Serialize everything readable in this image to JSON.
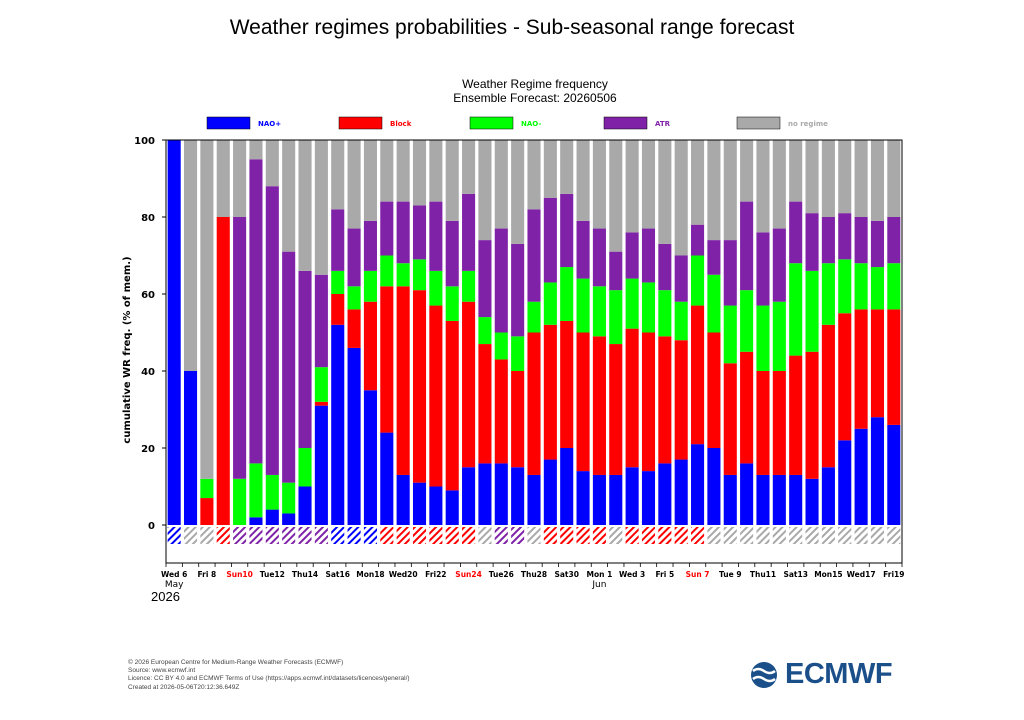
{
  "page": {
    "title": "Weather regimes probabilities - Sub-seasonal range forecast",
    "footer_lines": [
      "© 2026 European Centre for Medium-Range Weather Forecasts (ECMWF)",
      "Source: www.ecmwf.int",
      "Licence: CC BY 4.0 and ECMWF Terms of Use (https://apps.ecmwf.int/datasets/licences/general/)",
      "Created at 2026-05-06T20:12:36.649Z"
    ],
    "logo_text": "ECMWF"
  },
  "chart_data": {
    "type": "bar",
    "stacked": true,
    "title": "Weather Regime frequency",
    "subtitle": "Ensemble Forecast: 20260506",
    "ylabel": "cumulative WR freq. (% of mem.)",
    "ylim": [
      0,
      100
    ],
    "yticks": [
      0,
      20,
      40,
      60,
      80,
      100
    ],
    "grid": false,
    "legend_position": "top",
    "series": [
      {
        "name": "NAO+",
        "color": "#0000ff",
        "values": [
          100,
          40,
          0,
          0,
          0,
          2,
          4,
          3,
          10,
          31,
          52,
          46,
          35,
          24,
          13,
          11,
          10,
          9,
          15,
          16,
          16,
          15,
          13,
          17,
          20,
          14,
          13,
          13,
          15,
          14,
          16,
          17,
          21,
          20,
          13,
          16,
          13,
          13,
          13,
          12,
          15,
          22,
          25,
          28,
          26
        ]
      },
      {
        "name": "Block",
        "color": "#ff0000",
        "values": [
          0,
          0,
          7,
          80,
          0,
          0,
          0,
          0,
          0,
          1,
          8,
          10,
          23,
          38,
          49,
          50,
          47,
          44,
          43,
          31,
          27,
          25,
          37,
          35,
          33,
          36,
          36,
          34,
          36,
          36,
          33,
          31,
          36,
          30,
          29,
          29,
          27,
          27,
          31,
          33,
          37,
          33,
          31,
          28,
          30
        ]
      },
      {
        "name": "NAO-",
        "color": "#00ff00",
        "values": [
          0,
          0,
          5,
          0,
          12,
          14,
          9,
          8,
          10,
          9,
          6,
          6,
          8,
          8,
          6,
          8,
          9,
          9,
          8,
          7,
          7,
          9,
          8,
          11,
          14,
          14,
          13,
          14,
          13,
          13,
          12,
          10,
          13,
          15,
          15,
          16,
          17,
          18,
          24,
          21,
          16,
          14,
          12,
          11,
          12
        ]
      },
      {
        "name": "ATR",
        "color": "#7f22a8",
        "values": [
          0,
          0,
          0,
          0,
          68,
          79,
          75,
          60,
          46,
          24,
          16,
          15,
          13,
          14,
          16,
          14,
          18,
          17,
          20,
          20,
          27,
          24,
          24,
          22,
          19,
          15,
          15,
          10,
          12,
          14,
          12,
          12,
          8,
          9,
          17,
          23,
          19,
          19,
          16,
          15,
          12,
          12,
          12,
          12,
          12
        ]
      },
      {
        "name": "no regime",
        "color": "#a9a9a9",
        "values": [
          0,
          60,
          88,
          20,
          20,
          5,
          12,
          29,
          34,
          35,
          18,
          23,
          21,
          16,
          16,
          17,
          16,
          21,
          14,
          26,
          23,
          27,
          18,
          15,
          14,
          21,
          23,
          29,
          24,
          23,
          27,
          30,
          22,
          26,
          26,
          16,
          24,
          23,
          16,
          19,
          20,
          19,
          20,
          21,
          20
        ]
      }
    ],
    "dominant_regime_strip": [
      "NAO+",
      "no regime",
      "no regime",
      "Block",
      "ATR",
      "ATR",
      "ATR",
      "ATR",
      "ATR",
      "ATR",
      "NAO+",
      "NAO+",
      "NAO+",
      "Block",
      "Block",
      "Block",
      "Block",
      "Block",
      "Block",
      "no regime",
      "ATR",
      "ATR",
      "no regime",
      "Block",
      "Block",
      "Block",
      "Block",
      "no regime",
      "Block",
      "Block",
      "Block",
      "Block",
      "Block",
      "no regime",
      "no regime",
      "no regime",
      "no regime",
      "no regime",
      "no regime",
      "no regime",
      "no regime",
      "no regime",
      "no regime",
      "no regime",
      "no regime"
    ],
    "x_tick_labels": [
      {
        "index": 0,
        "label": "Wed 6",
        "color": "#000000"
      },
      {
        "index": 2,
        "label": "Fri 8",
        "color": "#000000"
      },
      {
        "index": 4,
        "label": "Sun10",
        "color": "#ff0000"
      },
      {
        "index": 6,
        "label": "Tue12",
        "color": "#000000"
      },
      {
        "index": 8,
        "label": "Thu14",
        "color": "#000000"
      },
      {
        "index": 10,
        "label": "Sat16",
        "color": "#000000"
      },
      {
        "index": 12,
        "label": "Mon18",
        "color": "#000000"
      },
      {
        "index": 14,
        "label": "Wed20",
        "color": "#000000"
      },
      {
        "index": 16,
        "label": "Fri22",
        "color": "#000000"
      },
      {
        "index": 18,
        "label": "Sun24",
        "color": "#ff0000"
      },
      {
        "index": 20,
        "label": "Tue26",
        "color": "#000000"
      },
      {
        "index": 22,
        "label": "Thu28",
        "color": "#000000"
      },
      {
        "index": 24,
        "label": "Sat30",
        "color": "#000000"
      },
      {
        "index": 26,
        "label": "Mon 1",
        "color": "#000000"
      },
      {
        "index": 28,
        "label": "Wed 3",
        "color": "#000000"
      },
      {
        "index": 30,
        "label": "Fri 5",
        "color": "#000000"
      },
      {
        "index": 32,
        "label": "Sun 7",
        "color": "#ff0000"
      },
      {
        "index": 34,
        "label": "Tue 9",
        "color": "#000000"
      },
      {
        "index": 36,
        "label": "Thu11",
        "color": "#000000"
      },
      {
        "index": 38,
        "label": "Sat13",
        "color": "#000000"
      },
      {
        "index": 40,
        "label": "Mon15",
        "color": "#000000"
      },
      {
        "index": 42,
        "label": "Wed17",
        "color": "#000000"
      },
      {
        "index": 44,
        "label": "Fri19",
        "color": "#000000"
      }
    ],
    "month_labels": [
      {
        "index": 0,
        "label": "May"
      },
      {
        "index": 26,
        "label": "Jun"
      }
    ],
    "year_label": "2026"
  }
}
